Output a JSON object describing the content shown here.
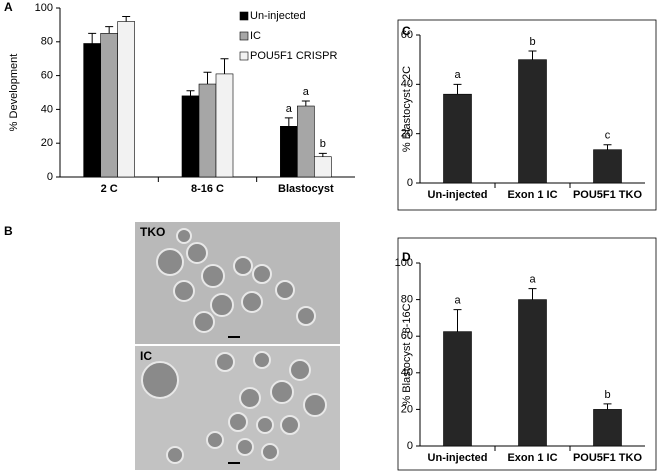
{
  "chart_data": [
    {
      "type": "bar",
      "panel": "A",
      "ylabel": "% Development",
      "categories": [
        "2 C",
        "8-16 C",
        "Blastocyst"
      ],
      "series": [
        {
          "name": "Un-injected",
          "color": "#000000",
          "values": [
            79,
            48,
            30
          ],
          "errors": [
            6,
            3,
            5
          ],
          "annotations": [
            null,
            null,
            "a"
          ]
        },
        {
          "name": "IC",
          "color": "#a6a6a6",
          "values": [
            85,
            55,
            42
          ],
          "errors": [
            4,
            7,
            3
          ],
          "annotations": [
            null,
            null,
            "a"
          ]
        },
        {
          "name": "POU5F1 CRISPR",
          "color": "#f2f2f2",
          "values": [
            92,
            61,
            12
          ],
          "errors": [
            3,
            9,
            2
          ],
          "annotations": [
            null,
            null,
            "b"
          ]
        }
      ],
      "ylim": [
        0,
        100
      ],
      "yticks": [
        0,
        20,
        40,
        60,
        80,
        100
      ],
      "legend": "upper-right"
    },
    {
      "type": "bar",
      "panel": "C",
      "ylabel": "% Blastocyst : 2C",
      "categories": [
        "Un-injected",
        "Exon 1 IC",
        "POU5F1  TKO"
      ],
      "values": [
        36,
        50,
        13.5
      ],
      "errors": [
        4,
        3.5,
        2
      ],
      "annotations": [
        "a",
        "b",
        "c"
      ],
      "color": "#262626",
      "ylim": [
        0,
        60
      ],
      "yticks": [
        0,
        20,
        40,
        60
      ]
    },
    {
      "type": "bar",
      "panel": "D",
      "ylabel": "% Blastocyst : 8-16C",
      "categories": [
        "Un-injected",
        "Exon 1 IC",
        "POU5F1  TKO"
      ],
      "values": [
        62.5,
        80,
        20
      ],
      "errors": [
        12,
        6,
        3
      ],
      "annotations": [
        "a",
        "a",
        "b"
      ],
      "color": "#262626",
      "ylim": [
        0,
        100
      ],
      "yticks": [
        0,
        20,
        40,
        60,
        80,
        100
      ]
    }
  ],
  "image_panel": {
    "panel": "B",
    "labels": [
      "TKO",
      "IC"
    ]
  }
}
